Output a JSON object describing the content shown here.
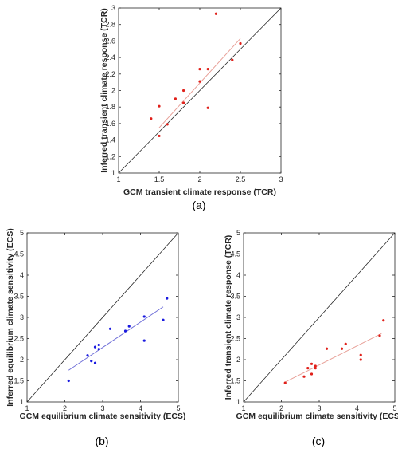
{
  "chart_data": [
    {
      "type": "scatter",
      "panel_label": "(a)",
      "xlabel": "GCM transient climate response (TCR)",
      "ylabel": "Inferred transient climate response (TCR)",
      "xlim": [
        1,
        3
      ],
      "ylim": [
        1,
        3
      ],
      "xticks": [
        "1",
        "1.5",
        "2",
        "2.5",
        "3"
      ],
      "yticks": [
        "1",
        "1.2",
        "1.4",
        "1.6",
        "1.8",
        "2",
        "2.2",
        "2.4",
        "2.6",
        "2.8",
        "3"
      ],
      "identity_line": true,
      "marker_color": "#e0201a",
      "fit_color": "#e8a098",
      "fit_line": {
        "x": [
          1.5,
          2.5
        ],
        "y": [
          1.55,
          2.63
        ]
      },
      "series": [
        {
          "x": [
            1.4,
            1.5,
            1.5,
            1.6,
            1.7,
            1.8,
            1.8,
            2.0,
            2.0,
            2.1,
            2.1,
            2.2,
            2.4,
            2.5
          ],
          "y": [
            1.66,
            1.81,
            1.45,
            1.59,
            1.9,
            2.0,
            1.85,
            2.26,
            2.11,
            2.26,
            1.79,
            2.93,
            2.37,
            2.57
          ]
        }
      ]
    },
    {
      "type": "scatter",
      "panel_label": "(b)",
      "xlabel": "GCM equilibrium climate sensitivity (ECS)",
      "ylabel": "Inferred equilibrium climate sensitivity (ECS)",
      "xlim": [
        1,
        5
      ],
      "ylim": [
        1,
        5
      ],
      "xticks": [
        "1",
        "2",
        "3",
        "4",
        "5"
      ],
      "yticks": [
        "1",
        "1.5",
        "2",
        "2.5",
        "3",
        "3.5",
        "4",
        "4.5",
        "5"
      ],
      "identity_line": true,
      "marker_color": "#1a1ae0",
      "fit_color": "#7070d8",
      "fit_line": {
        "x": [
          2.1,
          4.6
        ],
        "y": [
          1.75,
          3.25
        ]
      },
      "series": [
        {
          "x": [
            2.1,
            2.6,
            2.7,
            2.8,
            2.8,
            2.9,
            2.9,
            3.2,
            3.6,
            3.7,
            4.1,
            4.1,
            4.6,
            4.7
          ],
          "y": [
            1.5,
            2.1,
            1.97,
            1.92,
            2.3,
            2.35,
            2.25,
            2.73,
            2.68,
            2.79,
            2.45,
            3.02,
            2.94,
            3.45
          ]
        }
      ]
    },
    {
      "type": "scatter",
      "panel_label": "(c)",
      "xlabel": "GCM equilibrium climate sensitivity (ECS)",
      "ylabel": "Inferred transient climate response (TCR)",
      "xlim": [
        1,
        5
      ],
      "ylim": [
        1,
        5
      ],
      "xticks": [
        "1",
        "2",
        "3",
        "4",
        "5"
      ],
      "yticks": [
        "1",
        "1.5",
        "2",
        "2.5",
        "3",
        "3.5",
        "4",
        "4.5",
        "5"
      ],
      "identity_line": true,
      "marker_color": "#e0201a",
      "fit_color": "#e8a098",
      "fit_line": {
        "x": [
          2.1,
          4.65
        ],
        "y": [
          1.47,
          2.62
        ]
      },
      "series": [
        {
          "x": [
            2.1,
            2.6,
            2.7,
            2.8,
            2.8,
            2.9,
            2.9,
            3.2,
            3.6,
            3.7,
            4.1,
            4.1,
            4.6,
            4.7
          ],
          "y": [
            1.45,
            1.6,
            1.8,
            1.66,
            1.9,
            1.85,
            1.8,
            2.26,
            2.26,
            2.37,
            2.0,
            2.11,
            2.57,
            2.93
          ]
        }
      ]
    }
  ]
}
